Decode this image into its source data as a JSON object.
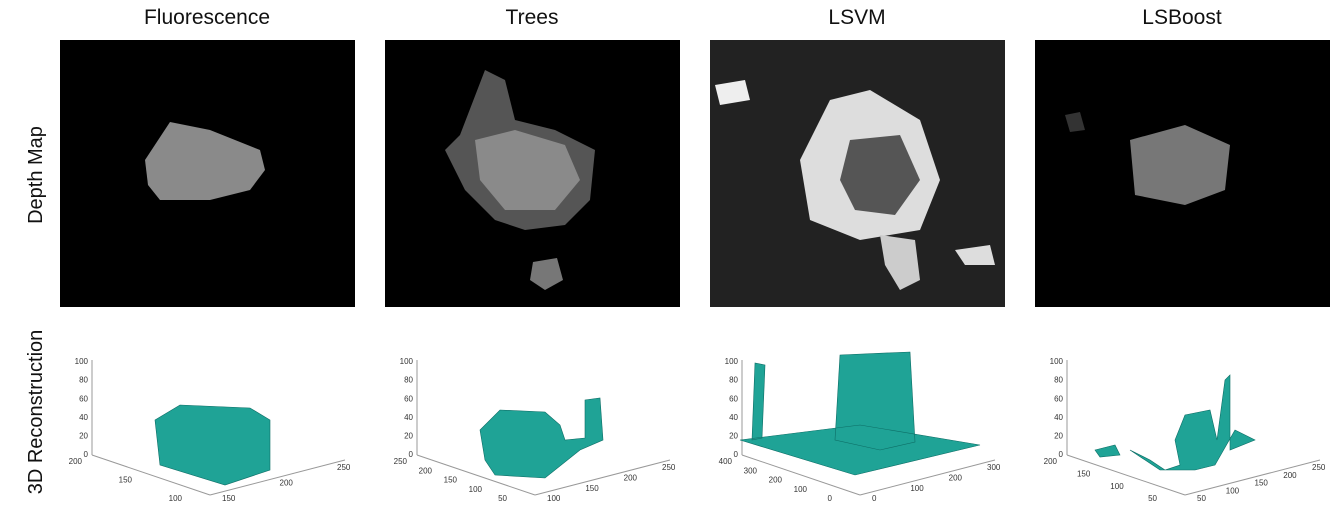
{
  "columns": [
    {
      "title": "Fluorescence",
      "z_ticks": [
        100,
        80,
        60,
        40,
        20,
        0
      ],
      "y_ticks": [
        200,
        150,
        100
      ],
      "x_ticks": [
        150,
        200,
        250
      ]
    },
    {
      "title": "Trees",
      "z_ticks": [
        100,
        80,
        60,
        40,
        20,
        0
      ],
      "y_ticks": [
        250,
        200,
        150,
        100,
        50
      ],
      "x_ticks": [
        100,
        150,
        200,
        250
      ]
    },
    {
      "title": "LSVM",
      "z_ticks": [
        100,
        80,
        60,
        40,
        20,
        0
      ],
      "y_ticks": [
        400,
        300,
        200,
        100,
        0
      ],
      "x_ticks": [
        0,
        100,
        200,
        300
      ]
    },
    {
      "title": "LSBoost",
      "z_ticks": [
        100,
        80,
        60,
        40,
        20,
        0
      ],
      "y_ticks": [
        200,
        150,
        100,
        50
      ],
      "x_ticks": [
        50,
        100,
        150,
        200,
        250
      ]
    }
  ],
  "rows": [
    {
      "label": "Depth Map"
    },
    {
      "label": "3D Reconstruction"
    }
  ]
}
